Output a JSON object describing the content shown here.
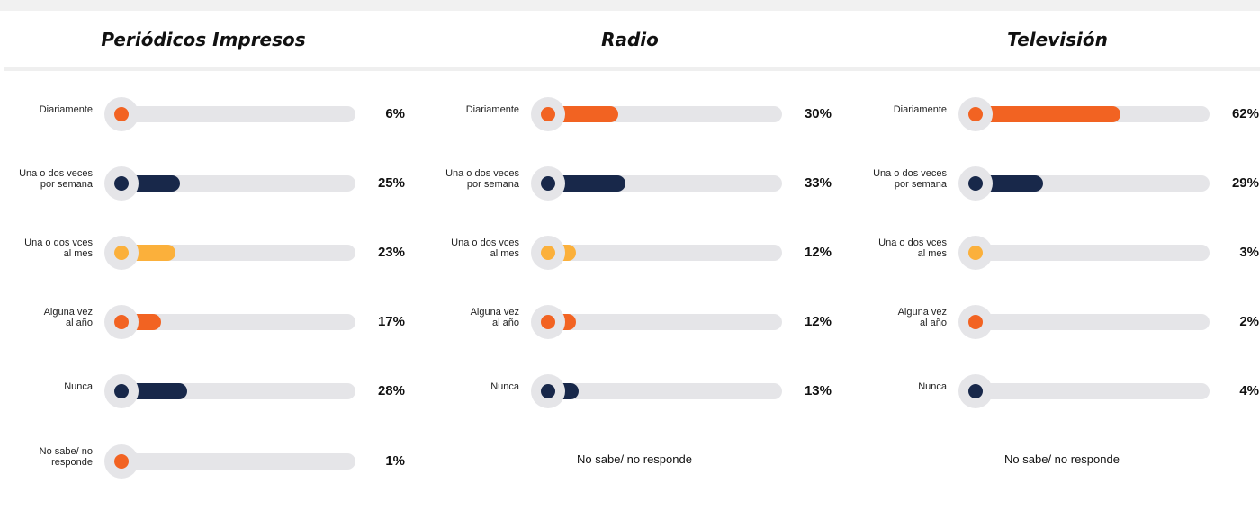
{
  "header": {
    "title": "",
    "title_visible_fragment": "p   p"
  },
  "colors": {
    "orange": "#f26322",
    "navy": "#18284a",
    "yellow": "#fbb03b",
    "track": "#e5e5e8"
  },
  "chart_data": {
    "type": "bar",
    "categories": [
      "Diariamente",
      "Una o dos veces por semana",
      "Una o dos vces al mes",
      "Alguna vez al año",
      "Nunca",
      "No sabe/ no responde"
    ],
    "category_lines": [
      [
        "Diariamente"
      ],
      [
        "Una o dos veces",
        "por semana"
      ],
      [
        "Una o dos vces",
        "al mes"
      ],
      [
        "Alguna vez",
        "al año"
      ],
      [
        "Nunca"
      ],
      [
        "No sabe/ no",
        "responde"
      ]
    ],
    "category_colors": [
      "#f26322",
      "#18284a",
      "#fbb03b",
      "#f26322",
      "#18284a",
      "#f26322"
    ],
    "xlim": [
      0,
      100
    ],
    "value_suffix": "%",
    "series": [
      {
        "name": "Periódicos Impresos",
        "values": [
          6,
          25,
          23,
          17,
          28,
          1
        ],
        "no_response_text": ""
      },
      {
        "name": "Radio",
        "values": [
          30,
          33,
          12,
          12,
          13,
          null
        ],
        "no_response_text": "No sabe/ no responde"
      },
      {
        "name": "Televisión",
        "values": [
          62,
          29,
          3,
          2,
          4,
          null
        ],
        "no_response_text": "No sabe/ no responde"
      }
    ]
  }
}
